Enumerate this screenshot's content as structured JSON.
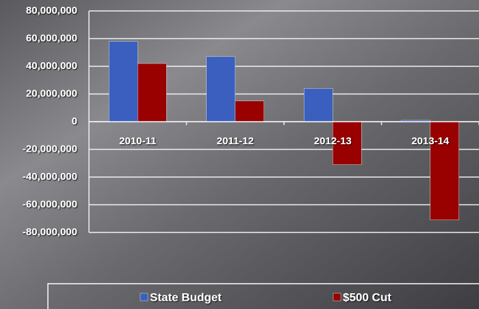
{
  "chart_data": {
    "type": "bar",
    "categories": [
      "2010-11",
      "2011-12",
      "2012-13",
      "2013-14"
    ],
    "series": [
      {
        "name": "State Budget",
        "color": "#3a5fbf",
        "values": [
          58000000,
          47000000,
          24000000,
          1000000
        ]
      },
      {
        "name": "$500 Cut",
        "color": "#990000",
        "values": [
          42000000,
          15000000,
          -31000000,
          -71000000
        ]
      }
    ],
    "ylim": [
      -80000000,
      80000000
    ],
    "yticks": [
      {
        "value": -80000000,
        "label": "-80,000,000"
      },
      {
        "value": -60000000,
        "label": "-60,000,000"
      },
      {
        "value": -40000000,
        "label": "-40,000,000"
      },
      {
        "value": -20000000,
        "label": "-20,000,000"
      },
      0,
      {
        "value": 20000000,
        "label": "20,000,000"
      },
      {
        "value": 40000000,
        "label": "40,000,000"
      },
      {
        "value": 60000000,
        "label": "60,000,000"
      },
      {
        "value": 80000000,
        "label": "80,000,000"
      }
    ],
    "grid": true,
    "legend": "bottom"
  }
}
